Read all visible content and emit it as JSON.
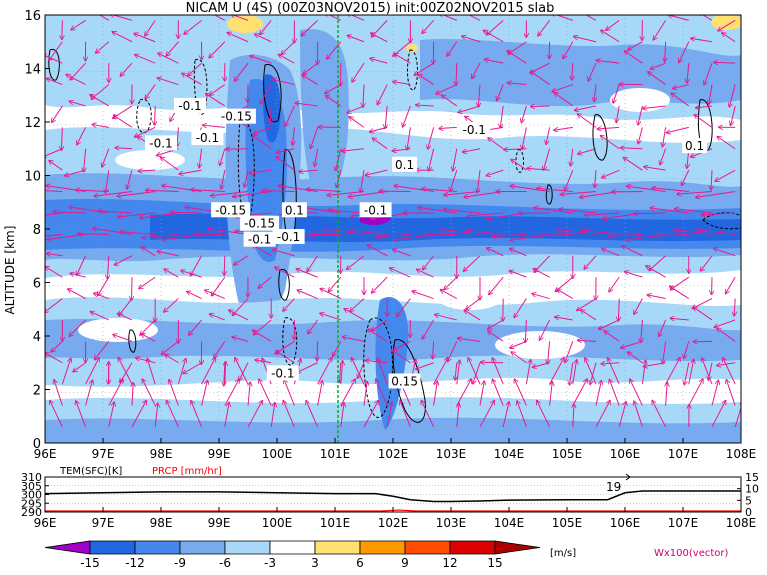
{
  "title": "NICAM U (4S) (00Z03NOV2015) init:00Z02NOV2015 slab",
  "chart_data": [
    {
      "type": "heatmap",
      "title": "NICAM U (4S) (00Z03NOV2015) init:00Z02NOV2015 slab",
      "ylabel": "ALTITUDE [km]",
      "x_ticks": [
        "96E",
        "97E",
        "98E",
        "99E",
        "100E",
        "101E",
        "102E",
        "103E",
        "104E",
        "105E",
        "106E",
        "107E",
        "108E"
      ],
      "y_ticks": [
        0,
        2,
        4,
        6,
        8,
        10,
        12,
        14,
        16
      ],
      "xlim": [
        96,
        108
      ],
      "ylim": [
        0,
        16
      ],
      "marker_longitude": 101,
      "contour_labels": [
        {
          "text": "-0.1",
          "lon": 98.0,
          "alt": 11.2
        },
        {
          "text": "-0.1",
          "lon": 98.5,
          "alt": 12.6
        },
        {
          "text": "-0.15",
          "lon": 99.3,
          "alt": 12.2
        },
        {
          "text": "-0.1",
          "lon": 98.8,
          "alt": 11.4
        },
        {
          "text": "-0.1",
          "lon": 101.7,
          "alt": 8.7
        },
        {
          "text": "0.1",
          "lon": 102.2,
          "alt": 10.4
        },
        {
          "text": "-0.1",
          "lon": 103.4,
          "alt": 11.7
        },
        {
          "text": "0.1",
          "lon": 107.2,
          "alt": 11.1
        },
        {
          "text": "-0.15",
          "lon": 99.2,
          "alt": 8.7
        },
        {
          "text": "-0.15",
          "lon": 99.7,
          "alt": 8.2
        },
        {
          "text": "0.1",
          "lon": 100.3,
          "alt": 8.7
        },
        {
          "text": "-0.1",
          "lon": 99.7,
          "alt": 7.6
        },
        {
          "text": "-0.1",
          "lon": 100.2,
          "alt": 7.7
        },
        {
          "text": "-0.1",
          "lon": 100.1,
          "alt": 2.6
        },
        {
          "text": "0.15",
          "lon": 102.2,
          "alt": 2.3
        }
      ]
    },
    {
      "type": "line",
      "series": [
        {
          "name": "TEM(SFC)[K]",
          "color": "#000000",
          "x": [
            96,
            97,
            98,
            99,
            100,
            101,
            101.7,
            102,
            102.3,
            102.7,
            103,
            103.5,
            104,
            105,
            105.7,
            106,
            106.3,
            107,
            108
          ],
          "values": [
            300.5,
            301,
            301.5,
            301.5,
            301,
            300.5,
            300.5,
            299,
            297,
            296,
            296,
            296.3,
            296.8,
            297,
            297,
            301,
            302,
            302,
            302
          ]
        },
        {
          "name": "PRCP [mm/hr]",
          "color": "#ff0000",
          "x": [
            96,
            101.8,
            102.1,
            102.4,
            108
          ],
          "values": [
            0,
            0,
            0.4,
            0,
            0
          ]
        }
      ],
      "x_ticks": [
        "96E",
        "97E",
        "98E",
        "99E",
        "100E",
        "101E",
        "102E",
        "103E",
        "104E",
        "105E",
        "106E",
        "107E",
        "108E"
      ],
      "left_ticks": [
        290,
        295,
        300,
        305,
        310
      ],
      "right_ticks": [
        0,
        5,
        10,
        15
      ],
      "left_ylim": [
        290,
        310
      ],
      "right_ylim": [
        0,
        15
      ],
      "annotation": "19"
    }
  ],
  "colorbar": {
    "unit": "[m/s]",
    "ticks": [
      "-15",
      "-12",
      "-9",
      "-6",
      "-3",
      "3",
      "6",
      "9",
      "12",
      "15"
    ],
    "colors": [
      "#a000c8",
      "#2266e0",
      "#4488ee",
      "#77aaee",
      "#a8d8f8",
      "#ffffff",
      "#ffe070",
      "#ff9900",
      "#ff4d00",
      "#dd0000",
      "#aa0000"
    ],
    "vector_label": "Wx100(vector)"
  }
}
